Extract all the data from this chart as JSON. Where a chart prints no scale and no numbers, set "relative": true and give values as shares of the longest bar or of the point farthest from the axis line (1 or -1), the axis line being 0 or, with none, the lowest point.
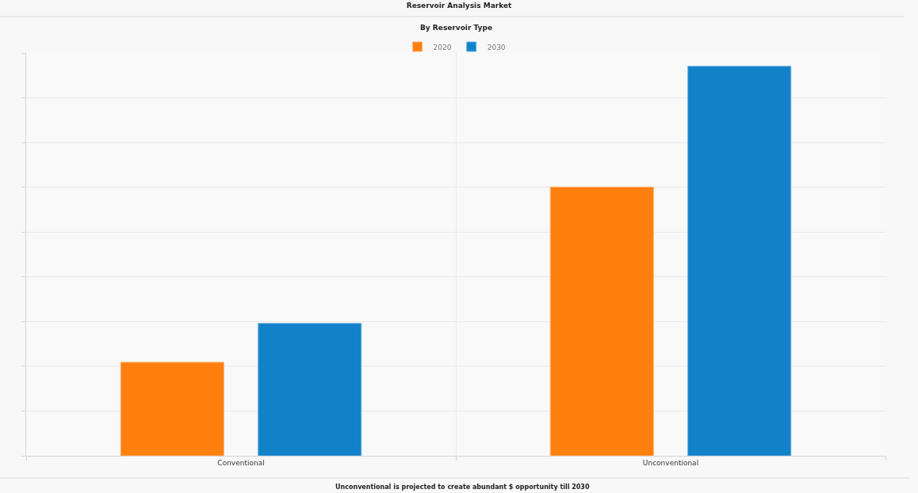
{
  "chart_data": {
    "type": "bar",
    "title": "Reservoir Analysis Market",
    "subtitle": "By Reservoir Type",
    "categories": [
      "Conventional",
      "Unconventional"
    ],
    "series": [
      {
        "name": "2020",
        "color": "#ff7f0f",
        "values": [
          0.24,
          0.69
        ]
      },
      {
        "name": "2030",
        "color": "#1181c9",
        "values": [
          0.34,
          1
        ]
      }
    ],
    "relative": true,
    "grid": true,
    "legend": "top",
    "annotations": [
      "Unconventional is projected to create abundant $ opportunity till 2030"
    ]
  }
}
